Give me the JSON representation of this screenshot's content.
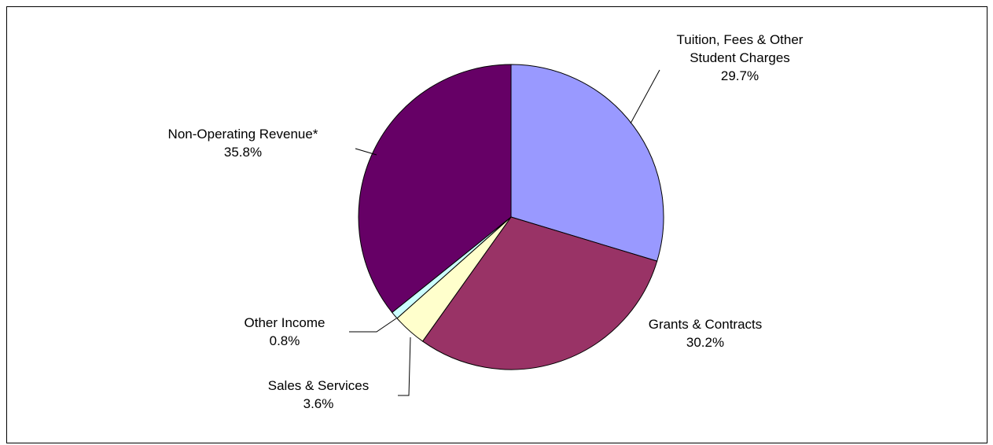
{
  "chart_data": {
    "type": "pie",
    "start_angle_deg": 0,
    "direction": "clockwise",
    "slices": [
      {
        "label_lines": [
          "Tuition, Fees & Other",
          "Student Charges"
        ],
        "value": 29.7,
        "value_label": "29.7%",
        "color": "#9999ff"
      },
      {
        "label_lines": [
          "Grants & Contracts"
        ],
        "value": 30.2,
        "value_label": "30.2%",
        "color": "#993366"
      },
      {
        "label_lines": [
          "Sales & Services"
        ],
        "value": 3.6,
        "value_label": "3.6%",
        "color": "#ffffcc"
      },
      {
        "label_lines": [
          "Other Income"
        ],
        "value": 0.8,
        "value_label": "0.8%",
        "color": "#ccffff"
      },
      {
        "label_lines": [
          "Non-Operating Revenue*"
        ],
        "value": 35.8,
        "value_label": "35.8%",
        "color": "#660066"
      }
    ]
  }
}
